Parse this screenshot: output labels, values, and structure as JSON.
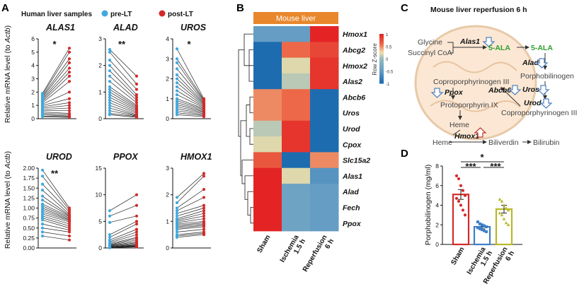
{
  "panels": {
    "A": "A",
    "B": "B",
    "C": "C",
    "D": "D"
  },
  "panelA": {
    "legend_title": "Human liver samples",
    "legend": [
      {
        "label": "pre-LT",
        "color": "#3fa9e0"
      },
      {
        "label": "post-LT",
        "color": "#d42a2a"
      }
    ],
    "ylabel_prefix": "Relative mRNA level (to ",
    "ylabel_gene": "Actb",
    "ylabel_suffix": ")"
  },
  "chart_data": [
    {
      "type": "line",
      "title": "ALAS1",
      "significance": "*",
      "ylim": [
        0,
        6
      ],
      "yticks": [
        "0",
        "1",
        "2",
        "3",
        "4",
        "5",
        "6"
      ],
      "pre": [
        1.9,
        1.8,
        1.7,
        1.6,
        1.5,
        1.4,
        1.3,
        1.2,
        1.1,
        1.0,
        0.9,
        0.8,
        0.7,
        0.6,
        0.5,
        0.4,
        0.3,
        0.2,
        0.15
      ],
      "post": [
        5.3,
        5.0,
        4.5,
        4.2,
        3.8,
        3.5,
        3.2,
        2.8,
        2.0,
        1.5,
        1.2,
        1.0,
        0.8,
        0.6,
        0.4,
        0.3,
        0.2,
        0.15,
        0.1
      ]
    },
    {
      "type": "line",
      "title": "ALAD",
      "significance": "**",
      "ylim": [
        0,
        3
      ],
      "yticks": [
        "0",
        "1",
        "2",
        "3"
      ],
      "pre": [
        2.6,
        2.5,
        2.2,
        2.0,
        1.8,
        1.6,
        1.4,
        1.2,
        1.1,
        1.0,
        0.9,
        0.8,
        0.7,
        0.6,
        0.5,
        0.4,
        0.3,
        0.2,
        0.15
      ],
      "post": [
        1.6,
        1.3,
        1.1,
        0.9,
        0.8,
        0.7,
        0.6,
        0.5,
        0.45,
        0.4,
        0.35,
        0.3,
        0.25,
        0.2,
        0.15,
        0.12,
        0.1,
        0.08,
        0.05
      ]
    },
    {
      "type": "line",
      "title": "UROS",
      "significance": "*",
      "ylim": [
        0,
        4
      ],
      "yticks": [
        "0",
        "1",
        "2",
        "3",
        "4"
      ],
      "pre": [
        3.5,
        3.0,
        2.8,
        2.5,
        2.2,
        2.0,
        1.8,
        1.6,
        1.4,
        1.2,
        1.0,
        0.9,
        0.8,
        0.7,
        0.6,
        0.5,
        0.4,
        0.3,
        0.2
      ],
      "post": [
        1.0,
        0.95,
        0.9,
        0.85,
        0.8,
        0.75,
        0.7,
        0.65,
        0.6,
        0.55,
        0.5,
        0.45,
        0.4,
        0.35,
        0.3,
        0.25,
        0.2,
        0.15,
        0.1
      ]
    },
    {
      "type": "line",
      "title": "UROD",
      "significance": "**",
      "ylim": [
        0,
        2.0
      ],
      "yticks": [
        "0.00",
        "0.25",
        "0.50",
        "0.75",
        "1.00",
        "1.25",
        "1.50",
        "1.75",
        "2.00"
      ],
      "pre": [
        1.95,
        1.8,
        1.6,
        1.45,
        1.3,
        1.2,
        1.1,
        1.05,
        1.0,
        0.95,
        0.9,
        0.85,
        0.8,
        0.75,
        0.7,
        0.6,
        0.5,
        0.4,
        0.3
      ],
      "post": [
        1.0,
        0.95,
        0.9,
        0.85,
        0.82,
        0.8,
        0.78,
        0.75,
        0.72,
        0.7,
        0.68,
        0.65,
        0.6,
        0.55,
        0.5,
        0.45,
        0.4,
        0.3,
        0.2
      ]
    },
    {
      "type": "line",
      "title": "PPOX",
      "significance": "",
      "ylim": [
        0,
        15
      ],
      "yticks": [
        "0",
        "5",
        "10",
        "15"
      ],
      "pre": [
        7.0,
        6.0,
        4.8,
        2.5,
        2.0,
        1.5,
        1.2,
        1.0,
        0.8,
        0.6,
        0.5,
        0.4,
        0.3,
        0.2,
        0.2,
        0.1,
        0.1,
        0.05,
        0.05
      ],
      "post": [
        10.0,
        8.0,
        6.0,
        5.0,
        4.5,
        3.5,
        3.0,
        2.5,
        2.0,
        1.8,
        1.5,
        1.2,
        1.0,
        0.8,
        0.6,
        0.5,
        0.4,
        0.3,
        0.2
      ]
    },
    {
      "type": "line",
      "title": "HMOX1",
      "significance": "",
      "ylim": [
        0,
        3
      ],
      "yticks": [
        "0",
        "1",
        "2",
        "3"
      ],
      "pre": [
        1.9,
        1.7,
        1.5,
        1.4,
        1.3,
        1.2,
        1.1,
        1.05,
        1.0,
        0.95,
        0.9,
        0.85,
        0.8,
        0.75,
        0.7,
        0.6,
        0.5,
        0.45,
        0.4
      ],
      "post": [
        2.8,
        2.7,
        2.2,
        1.9,
        1.6,
        1.5,
        1.4,
        1.3,
        1.2,
        1.1,
        1.0,
        0.95,
        0.9,
        0.85,
        0.8,
        0.7,
        0.6,
        0.55,
        0.5
      ]
    },
    {
      "type": "heatmap",
      "title": "Mouse liver",
      "scale_label": "Row Z-score",
      "scale_ticks": [
        "1",
        "0.5",
        "0",
        "-0.5",
        "-1"
      ],
      "columns": [
        "Sham",
        "Ischemia 1.5 h",
        "Reperfusion 6 h"
      ],
      "rows": [
        "Hmox1",
        "Abcg2",
        "Hmox2",
        "Alas2",
        "Abcb6",
        "Uros",
        "Urod",
        "Cpox",
        "Slc15a2",
        "Alas1",
        "Alad",
        "Fech",
        "Ppox"
      ],
      "values": [
        [
          -0.5,
          -0.5,
          1.0
        ],
        [
          -1.0,
          0.6,
          0.8
        ],
        [
          -1.0,
          0.2,
          0.9
        ],
        [
          -1.0,
          0.1,
          0.9
        ],
        [
          0.5,
          0.6,
          -1.0
        ],
        [
          0.5,
          0.6,
          -1.0
        ],
        [
          0.1,
          0.9,
          -1.0
        ],
        [
          0.2,
          0.9,
          -1.0
        ],
        [
          0.7,
          -1.0,
          0.5
        ],
        [
          1.0,
          0.2,
          -0.6
        ],
        [
          1.0,
          -0.4,
          -0.5
        ],
        [
          1.0,
          -0.4,
          -0.5
        ],
        [
          1.0,
          -0.4,
          -0.5
        ]
      ]
    },
    {
      "type": "bar",
      "title": "",
      "ylabel": "Porphobilinogen (mg/ml)",
      "ylim": [
        0,
        8
      ],
      "yticks": [
        "0",
        "2",
        "4",
        "6",
        "8"
      ],
      "categories": [
        "Sham",
        "Ischemia 1.5 h",
        "Reperfusion 6 h"
      ],
      "values": [
        5.1,
        1.8,
        3.6
      ],
      "errors": [
        0.5,
        0.2,
        0.4
      ],
      "colors": [
        "#d42a2a",
        "#3f7fc7",
        "#b8b82a"
      ],
      "points": [
        [
          7.0,
          6.7,
          6.0,
          5.5,
          5.0,
          4.7,
          4.4,
          4.0,
          3.5,
          3.0
        ],
        [
          2.3,
          2.1,
          2.0,
          1.9,
          1.8,
          1.7,
          1.6,
          1.5,
          1.4,
          1.3
        ],
        [
          4.6,
          4.4,
          4.0,
          3.7,
          3.5,
          3.2,
          3.0,
          2.6,
          2.2,
          2.0
        ]
      ],
      "significance": [
        {
          "pair": "Sham-Ischemia",
          "label": "***"
        },
        {
          "pair": "Ischemia-Reperfusion",
          "label": "***"
        },
        {
          "pair": "Sham-Reperfusion",
          "label": "*"
        }
      ]
    }
  ],
  "panelC": {
    "title": "Mouse liver reperfusion 6 h",
    "glycine": "Glycine",
    "succinyl": "Succinyl CoA",
    "alas1": "Alas1",
    "ala1": "5-ALA",
    "ala2": "5-ALA",
    "alad": "Alad",
    "porpho": "Porphobilinogen",
    "uros": "Uros",
    "urod": "Urod",
    "copro_out": "Coproporphyrinogen III",
    "copro_in": "Coproporphyrinogen III",
    "abcb6": "Abcb6",
    "ppox": "Ppox",
    "proto": "Protoporphyrin IX",
    "heme_in": "Heme",
    "heme_out": "Heme",
    "hmox1": "Hmox1",
    "biliverdin": "Biliverdin",
    "bilirubin": "Bilirubin"
  }
}
